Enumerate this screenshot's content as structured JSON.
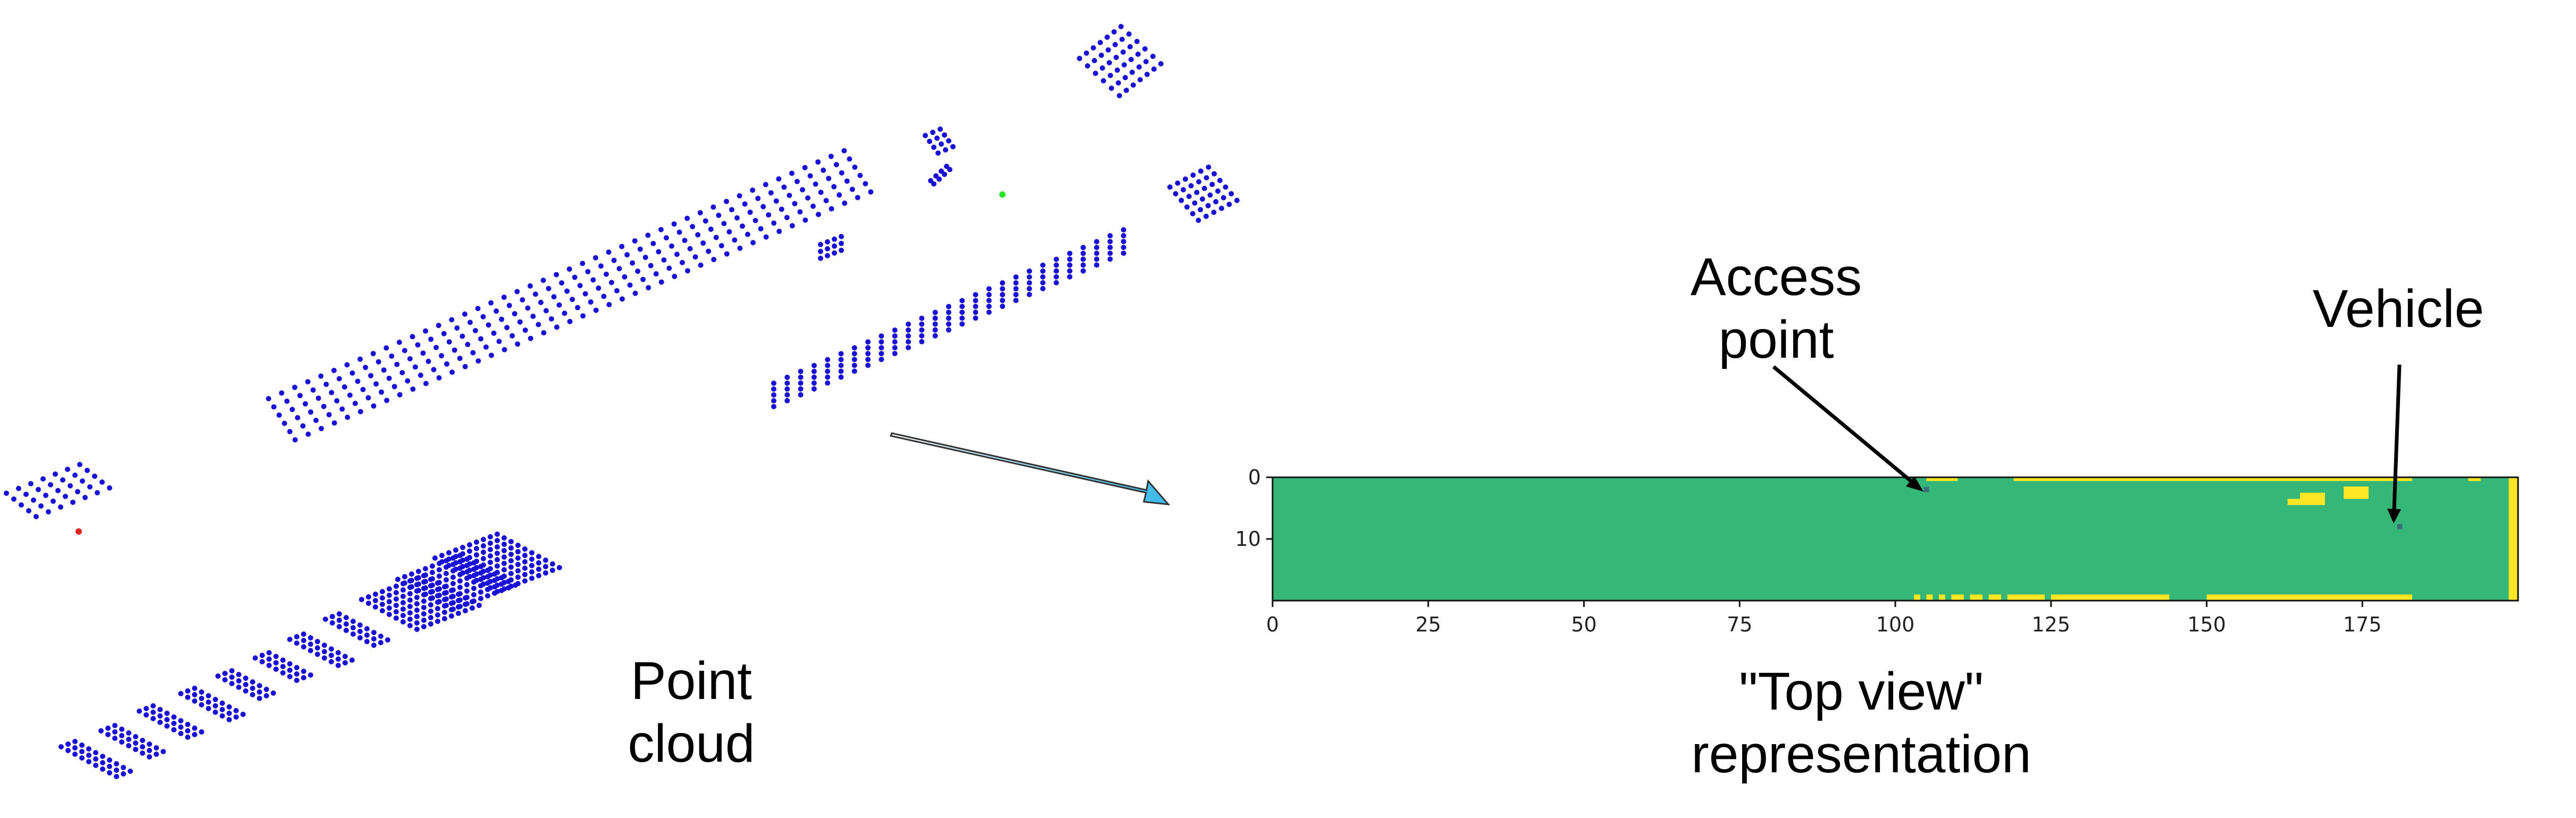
{
  "labels": {
    "point_cloud": [
      "Point",
      "cloud"
    ],
    "top_view": [
      "\"Top view\"",
      "representation"
    ],
    "access_point": [
      "Access",
      "point"
    ],
    "vehicle": "Vehicle"
  },
  "colors": {
    "points": "#1a10d6",
    "access_point_marker": "#29e629",
    "vehicle_marker": "#e0251e",
    "map_background": "#35b779",
    "map_obstacle": "#fde725",
    "arrow_gradient_start": "#ffffff",
    "arrow_gradient_end": "#39b8e8"
  },
  "chart_data": {
    "type": "heatmap",
    "x_ticks": [
      "0",
      "25",
      "50",
      "75",
      "100",
      "125",
      "150",
      "175"
    ],
    "y_ticks": [
      "0",
      "10"
    ],
    "xlim": [
      0,
      200
    ],
    "ylim": [
      20,
      0
    ],
    "access_point_cell": [
      105,
      2
    ],
    "vehicle_cell": [
      181,
      8
    ],
    "obstacles": [
      {
        "x0": 105,
        "x1": 110,
        "y0": 0,
        "y1": 0.6
      },
      {
        "x0": 119,
        "x1": 183,
        "y0": 0,
        "y1": 0.6
      },
      {
        "x0": 172,
        "x1": 176,
        "y0": 1.5,
        "y1": 3.5
      },
      {
        "x0": 165,
        "x1": 169,
        "y0": 2.5,
        "y1": 4.5
      },
      {
        "x0": 163,
        "x1": 165,
        "y0": 3.5,
        "y1": 4.5
      },
      {
        "x0": 192,
        "x1": 194,
        "y0": 0,
        "y1": 0.6
      },
      {
        "x0": 198.5,
        "x1": 200,
        "y0": 0,
        "y1": 20
      },
      {
        "x0": 103,
        "x1": 104,
        "y0": 19,
        "y1": 20
      },
      {
        "x0": 105,
        "x1": 106,
        "y0": 19,
        "y1": 20
      },
      {
        "x0": 107,
        "x1": 108,
        "y0": 19,
        "y1": 20
      },
      {
        "x0": 109,
        "x1": 111,
        "y0": 19,
        "y1": 20
      },
      {
        "x0": 112,
        "x1": 114,
        "y0": 19,
        "y1": 20
      },
      {
        "x0": 115,
        "x1": 117,
        "y0": 19,
        "y1": 20
      },
      {
        "x0": 118,
        "x1": 124,
        "y0": 19,
        "y1": 20
      },
      {
        "x0": 125,
        "x1": 144,
        "y0": 19,
        "y1": 20
      },
      {
        "x0": 150,
        "x1": 183,
        "y0": 19,
        "y1": 20
      }
    ]
  }
}
